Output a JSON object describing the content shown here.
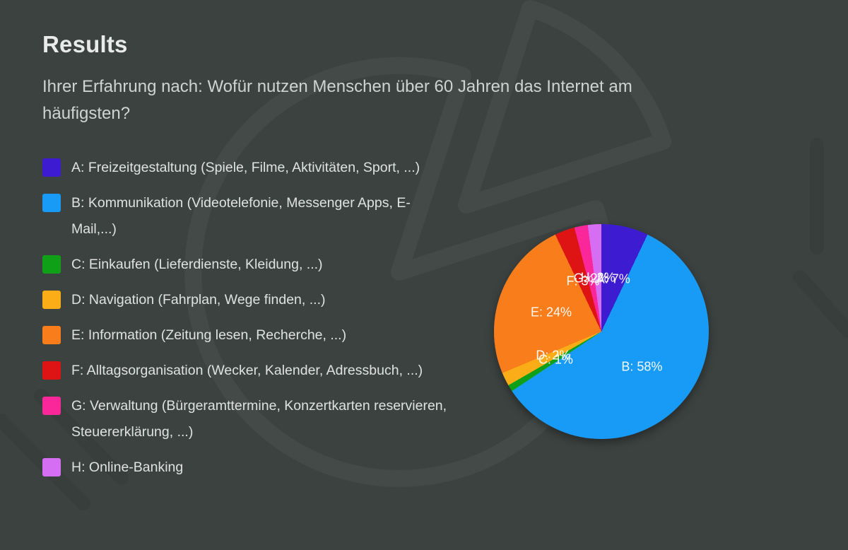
{
  "page": {
    "background_color": "#3C4240",
    "accent_text_color": "#E9EBEA"
  },
  "header": {
    "title": "Results",
    "question": "Ihrer Erfahrung nach: Wofür nutzen Menschen über 60 Jahren das Internet am häufigsten?"
  },
  "chart_data": {
    "type": "pie",
    "title": "Results",
    "subtitle": "Ihrer Erfahrung nach: Wofür nutzen Menschen über 60 Jahren das Internet am häufigsten?",
    "unit": "%",
    "start_angle_deg": 0,
    "direction": "clockwise",
    "legend_position": "left",
    "categories": [
      "A",
      "B",
      "C",
      "D",
      "E",
      "F",
      "G",
      "H"
    ],
    "values": [
      7,
      58,
      1,
      2,
      24,
      3,
      2,
      2
    ],
    "slices": [
      {
        "key": "A",
        "legend_label": "A: Freizeitgestaltung (Spiele, Filme, Aktivitäten, Sport, ...)",
        "value": 7,
        "slice_label": "A: 7%",
        "color": "#3C1BD1"
      },
      {
        "key": "B",
        "legend_label": "B: Kommunikation (Videotelefonie, Messenger Apps, E-Mail,...)",
        "value": 58,
        "slice_label": "B: 58%",
        "color": "#179BF7"
      },
      {
        "key": "C",
        "legend_label": "C: Einkaufen (Lieferdienste, Kleidung, ...)",
        "value": 1,
        "slice_label": "C: 1%",
        "color": "#0FA017"
      },
      {
        "key": "D",
        "legend_label": "D: Navigation (Fahrplan, Wege finden, ...)",
        "value": 2,
        "slice_label": "D: 2%",
        "color": "#FBAD18"
      },
      {
        "key": "E",
        "legend_label": "E: Information (Zeitung lesen, Recherche, ...)",
        "value": 24,
        "slice_label": "E: 24%",
        "color": "#F97D1A"
      },
      {
        "key": "F",
        "legend_label": "F: Alltagsorganisation (Wecker, Kalender, Adressbuch, ...)",
        "value": 3,
        "slice_label": "F: 3%",
        "color": "#DE1414"
      },
      {
        "key": "G",
        "legend_label": "G: Verwaltung (Bürgeramttermine, Konzertkarten reservieren, Steuererklärung, ...)",
        "value": 2,
        "slice_label": "G: 2%",
        "color": "#F9279A"
      },
      {
        "key": "H",
        "legend_label": "H: Online-Banking",
        "value": 2,
        "slice_label": "H: 2%",
        "color": "#D56EF2"
      }
    ]
  }
}
